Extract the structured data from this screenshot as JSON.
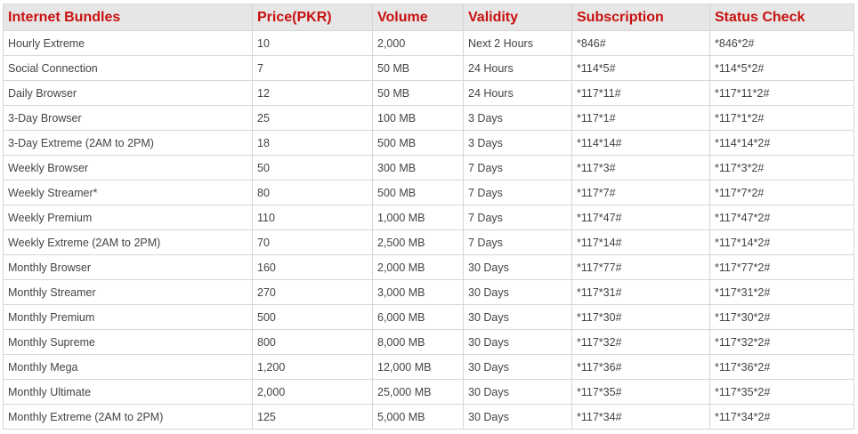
{
  "table": {
    "headers": [
      "Internet Bundles",
      "Price(PKR)",
      "Volume",
      "Validity",
      "Subscription",
      "Status Check"
    ],
    "rows": [
      [
        "Hourly Extreme",
        "10",
        "2,000",
        "Next 2 Hours",
        "*846#",
        "*846*2#"
      ],
      [
        "Social Connection",
        "7",
        "50 MB",
        "24 Hours",
        "*114*5#",
        "*114*5*2#"
      ],
      [
        "Daily Browser",
        "12",
        "50 MB",
        "24 Hours",
        "*117*11#",
        "*117*11*2#"
      ],
      [
        "3-Day Browser",
        "25",
        "100 MB",
        "3 Days",
        "*117*1#",
        "*117*1*2#"
      ],
      [
        "3-Day Extreme (2AM to 2PM)",
        "18",
        "500 MB",
        "3 Days",
        "*114*14#",
        "*114*14*2#"
      ],
      [
        "Weekly Browser",
        "50",
        "300 MB",
        "7 Days",
        "*117*3#",
        "*117*3*2#"
      ],
      [
        "Weekly Streamer*",
        "80",
        "500 MB",
        "7 Days",
        "*117*7#",
        "*117*7*2#"
      ],
      [
        "Weekly Premium",
        "110",
        "1,000 MB",
        "7 Days",
        "*117*47#",
        "*117*47*2#"
      ],
      [
        "Weekly Extreme (2AM to 2PM)",
        "70",
        "2,500 MB",
        "7 Days",
        "*117*14#",
        "*117*14*2#"
      ],
      [
        "Monthly Browser",
        "160",
        "2,000 MB",
        "30 Days",
        "*117*77#",
        "*117*77*2#"
      ],
      [
        "Monthly Streamer",
        "270",
        "3,000 MB",
        "30 Days",
        "*117*31#",
        "*117*31*2#"
      ],
      [
        "Monthly Premium",
        "500",
        "6,000 MB",
        "30 Days",
        "*117*30#",
        "*117*30*2#"
      ],
      [
        "Monthly Supreme",
        "800",
        "8,000 MB",
        "30 Days",
        "*117*32#",
        "*117*32*2#"
      ],
      [
        "Monthly Mega",
        "1,200",
        "12,000 MB",
        "30 Days",
        "*117*36#",
        "*117*36*2#"
      ],
      [
        "Monthly Ultimate",
        "2,000",
        "25,000 MB",
        "30 Days",
        "*117*35#",
        "*117*35*2#"
      ],
      [
        "Monthly Extreme (2AM to 2PM)",
        "125",
        "5,000 MB",
        "30 Days",
        "*117*34#",
        "*117*34*2#"
      ]
    ]
  },
  "colors": {
    "header_text": "#c8100f",
    "header_bg": "#e6e6e6",
    "cell_text": "#444444",
    "border": "#d6d6d6"
  }
}
